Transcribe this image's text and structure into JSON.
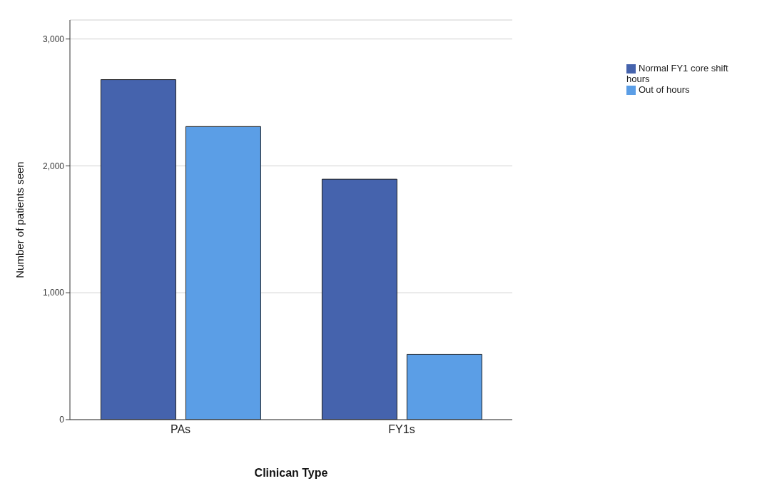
{
  "chart_data": {
    "type": "bar",
    "xlabel": "Clinican Type",
    "ylabel": "Number of patients seen",
    "categories": [
      "PAs",
      "FY1s"
    ],
    "series": [
      {
        "name": "Normal FY1 core shift hours",
        "color": "#4563ad",
        "values": [
          2680,
          1895
        ]
      },
      {
        "name": "Out of hours",
        "color": "#5b9ee6",
        "values": [
          2310,
          515
        ]
      }
    ],
    "ylim": [
      0,
      3150
    ],
    "yticks": [
      {
        "value": 0,
        "label": "0"
      },
      {
        "value": 1000,
        "label": "1,000"
      },
      {
        "value": 2000,
        "label": "2,000"
      },
      {
        "value": 3000,
        "label": "3,000"
      }
    ],
    "grid": "y",
    "legend": "top right"
  }
}
